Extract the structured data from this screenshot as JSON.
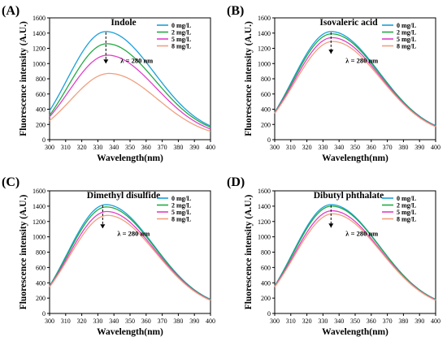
{
  "chart_data": [
    {
      "type": "line",
      "panel_label": "(A)",
      "title": "Indole",
      "xlabel": "Wavelength(nm)",
      "ylabel": "Fluorescence intensity (A.U.)",
      "xlim": [
        300,
        400
      ],
      "ylim": [
        0,
        1600
      ],
      "xticks": [
        "300",
        "310",
        "320",
        "330",
        "340",
        "350",
        "360",
        "370",
        "380",
        "390",
        "400"
      ],
      "yticks": [
        "0",
        "200",
        "400",
        "600",
        "800",
        "1000",
        "1200",
        "1400",
        "1600"
      ],
      "annotation": "λ = 280 nm",
      "legend_position": "top-right",
      "arrow": [
        335,
        1410,
        1000
      ],
      "series": [
        {
          "name": "0 mg/L",
          "color": "#1aa0d8",
          "peak": 1420,
          "peak_x": 335,
          "start": 380,
          "end": 180
        },
        {
          "name": "2 mg/L",
          "color": "#22aa44",
          "peak": 1260,
          "peak_x": 335.5,
          "start": 320,
          "end": 165
        },
        {
          "name": "5 mg/L",
          "color": "#e040c8",
          "peak": 1110,
          "peak_x": 336,
          "start": 300,
          "end": 140
        },
        {
          "name": "8 mg/L",
          "color": "#f0a080",
          "peak": 870,
          "peak_x": 337,
          "start": 250,
          "end": 110
        }
      ]
    },
    {
      "type": "line",
      "panel_label": "(B)",
      "title": "Isovaleric acid",
      "xlabel": "Wavelength(nm)",
      "ylabel": "Fluorescence intensity (A.U.)",
      "xlim": [
        300,
        400
      ],
      "ylim": [
        0,
        1600
      ],
      "xticks": [
        "300",
        "310",
        "320",
        "330",
        "340",
        "350",
        "360",
        "370",
        "380",
        "390",
        "400"
      ],
      "yticks": [
        "0",
        "200",
        "400",
        "600",
        "800",
        "1000",
        "1200",
        "1400",
        "1600"
      ],
      "annotation": "λ = 280 nm",
      "legend_position": "top-right",
      "arrow": [
        335,
        1410,
        1130
      ],
      "series": [
        {
          "name": "0 mg/L",
          "color": "#1aa0d8",
          "peak": 1420,
          "peak_x": 335,
          "start": 360,
          "end": 185
        },
        {
          "name": "2 mg/L",
          "color": "#22aa44",
          "peak": 1390,
          "peak_x": 335.3,
          "start": 355,
          "end": 180
        },
        {
          "name": "5 mg/L",
          "color": "#e040c8",
          "peak": 1340,
          "peak_x": 335.6,
          "start": 350,
          "end": 175
        },
        {
          "name": "8 mg/L",
          "color": "#f0a080",
          "peak": 1290,
          "peak_x": 336,
          "start": 345,
          "end": 170
        }
      ]
    },
    {
      "type": "line",
      "panel_label": "(C)",
      "title": "Dimethyl disulfide",
      "xlabel": "Wavelength(nm)",
      "ylabel": "Fluorescence intensity (A.U.)",
      "xlim": [
        300,
        400
      ],
      "ylim": [
        0,
        1600
      ],
      "xticks": [
        "300",
        "310",
        "320",
        "330",
        "340",
        "350",
        "360",
        "370",
        "380",
        "390",
        "400"
      ],
      "yticks": [
        "0",
        "200",
        "400",
        "600",
        "800",
        "1000",
        "1200",
        "1400",
        "1600"
      ],
      "annotation": "λ = 280 nm",
      "legend_position": "top-right",
      "arrow": [
        333,
        1410,
        1110
      ],
      "series": [
        {
          "name": "0 mg/L",
          "color": "#1aa0d8",
          "peak": 1420,
          "peak_x": 335,
          "start": 360,
          "end": 185
        },
        {
          "name": "2 mg/L",
          "color": "#22aa44",
          "peak": 1390,
          "peak_x": 335.3,
          "start": 355,
          "end": 180
        },
        {
          "name": "5 mg/L",
          "color": "#e040c8",
          "peak": 1330,
          "peak_x": 335.6,
          "start": 350,
          "end": 175
        },
        {
          "name": "8 mg/L",
          "color": "#f0a080",
          "peak": 1280,
          "peak_x": 336,
          "start": 345,
          "end": 170
        }
      ]
    },
    {
      "type": "line",
      "panel_label": "(D)",
      "title": "Dibutyl phthalate",
      "xlabel": "Wavelength(nm)",
      "ylabel": "Fluorescence intensity (A.U.)",
      "xlim": [
        300,
        400
      ],
      "ylim": [
        0,
        1600
      ],
      "xticks": [
        "300",
        "310",
        "320",
        "330",
        "340",
        "350",
        "360",
        "370",
        "380",
        "390",
        "400"
      ],
      "yticks": [
        "0",
        "200",
        "400",
        "600",
        "800",
        "1000",
        "1200",
        "1400",
        "1600"
      ],
      "annotation": "λ = 280 nm",
      "legend_position": "top-right",
      "arrow": [
        335,
        1410,
        1120
      ],
      "series": [
        {
          "name": "0 mg/L",
          "color": "#1aa0d8",
          "peak": 1420,
          "peak_x": 335,
          "start": 360,
          "end": 185
        },
        {
          "name": "2 mg/L",
          "color": "#22aa44",
          "peak": 1400,
          "peak_x": 335.3,
          "start": 355,
          "end": 182
        },
        {
          "name": "5 mg/L",
          "color": "#e040c8",
          "peak": 1340,
          "peak_x": 335.6,
          "start": 350,
          "end": 177
        },
        {
          "name": "8 mg/L",
          "color": "#f0a080",
          "peak": 1300,
          "peak_x": 336,
          "start": 345,
          "end": 172
        }
      ]
    }
  ]
}
